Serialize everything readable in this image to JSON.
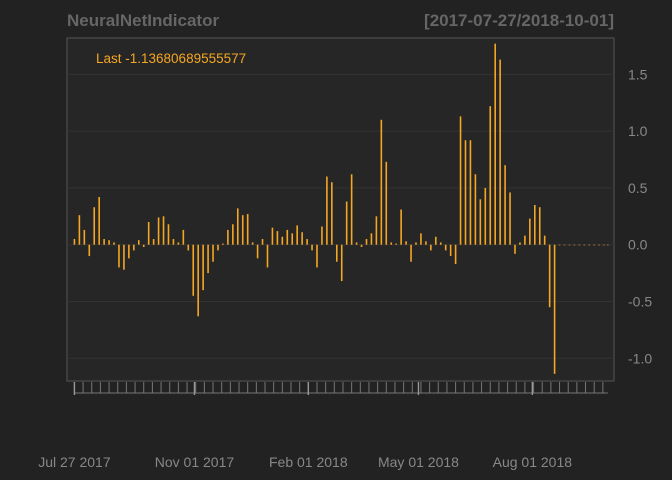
{
  "chart_data": {
    "type": "bar",
    "title": "NeuralNetIndicator",
    "date_range_label": "[2017-07-27/2018-10-01]",
    "last_label": "Last -1.13680689555577",
    "series_color": "#f5a623",
    "background_color": "#222222",
    "grid": true,
    "ylim": [
      -1.2,
      1.82
    ],
    "xlim": [
      "2017-07-21",
      "2018-10-06"
    ],
    "yticks": [
      {
        "value": 1.5,
        "label": "1.5"
      },
      {
        "value": 1.0,
        "label": "1.0"
      },
      {
        "value": 0.5,
        "label": "0.5"
      },
      {
        "value": 0.0,
        "label": "0.0"
      },
      {
        "value": -0.5,
        "label": "-0.5"
      },
      {
        "value": -1.0,
        "label": "-1.0"
      }
    ],
    "xticks": [
      {
        "date": "2017-07-27",
        "label": "Jul 27 2017"
      },
      {
        "date": "2017-11-01",
        "label": "Nov 01 2017"
      },
      {
        "date": "2018-02-01",
        "label": "Feb 01 2018"
      },
      {
        "date": "2018-05-01",
        "label": "May 01 2018"
      },
      {
        "date": "2018-08-01",
        "label": "Aug 01 2018"
      }
    ],
    "dates": [
      "2017-07-27",
      "2017-07-31",
      "2017-08-04",
      "2017-08-08",
      "2017-08-12",
      "2017-08-16",
      "2017-08-20",
      "2017-08-24",
      "2017-08-28",
      "2017-09-01",
      "2017-09-05",
      "2017-09-09",
      "2017-09-13",
      "2017-09-17",
      "2017-09-21",
      "2017-09-25",
      "2017-09-29",
      "2017-10-03",
      "2017-10-07",
      "2017-10-11",
      "2017-10-15",
      "2017-10-19",
      "2017-10-23",
      "2017-10-27",
      "2017-10-31",
      "2017-11-04",
      "2017-11-08",
      "2017-11-12",
      "2017-11-16",
      "2017-11-20",
      "2017-11-24",
      "2017-11-28",
      "2017-12-02",
      "2017-12-06",
      "2017-12-10",
      "2017-12-14",
      "2017-12-18",
      "2017-12-22",
      "2017-12-26",
      "2017-12-30",
      "2018-01-03",
      "2018-01-07",
      "2018-01-11",
      "2018-01-15",
      "2018-01-19",
      "2018-01-23",
      "2018-01-27",
      "2018-01-31",
      "2018-02-04",
      "2018-02-08",
      "2018-02-12",
      "2018-02-16",
      "2018-02-20",
      "2018-02-24",
      "2018-02-28",
      "2018-03-04",
      "2018-03-08",
      "2018-03-12",
      "2018-03-16",
      "2018-03-20",
      "2018-03-24",
      "2018-03-28",
      "2018-04-01",
      "2018-04-05",
      "2018-04-09",
      "2018-04-13",
      "2018-04-17",
      "2018-04-21",
      "2018-04-25",
      "2018-04-29",
      "2018-05-03",
      "2018-05-07",
      "2018-05-11",
      "2018-05-15",
      "2018-05-19",
      "2018-05-23",
      "2018-05-27",
      "2018-05-31",
      "2018-06-04",
      "2018-06-08",
      "2018-06-12",
      "2018-06-16",
      "2018-06-20",
      "2018-06-24",
      "2018-06-28",
      "2018-07-02",
      "2018-07-06",
      "2018-07-10",
      "2018-07-14",
      "2018-07-18",
      "2018-07-22",
      "2018-07-26",
      "2018-07-30",
      "2018-08-03",
      "2018-08-07",
      "2018-08-11",
      "2018-08-15",
      "2018-08-19",
      "2018-08-23",
      "2018-08-27",
      "2018-08-31",
      "2018-09-04",
      "2018-09-08",
      "2018-09-12",
      "2018-09-16",
      "2018-09-20",
      "2018-09-24",
      "2018-09-28",
      "2018-10-01"
    ],
    "values": [
      0.05,
      0.26,
      0.13,
      -0.1,
      0.33,
      0.42,
      0.05,
      0.04,
      0.02,
      -0.2,
      -0.22,
      -0.12,
      -0.05,
      0.04,
      -0.02,
      0.2,
      0.05,
      0.24,
      0.25,
      0.18,
      0.05,
      0.02,
      0.13,
      -0.05,
      -0.45,
      -0.63,
      -0.4,
      -0.25,
      -0.15,
      -0.05,
      0.01,
      0.13,
      0.18,
      0.32,
      0.26,
      0.27,
      0.02,
      -0.12,
      0.05,
      -0.2,
      0.15,
      0.12,
      0.07,
      0.13,
      0.1,
      0.17,
      0.11,
      0.05,
      -0.05,
      -0.2,
      0.16,
      0.6,
      0.55,
      -0.15,
      -0.32,
      0.38,
      0.62,
      0.02,
      -0.02,
      0.05,
      0.1,
      0.25,
      1.1,
      0.73,
      0.02,
      0.01,
      0.31,
      0.03,
      -0.15,
      0.02,
      0.1,
      0.03,
      -0.05,
      0.07,
      0.02,
      -0.05,
      -0.1,
      -0.17,
      1.13,
      0.92,
      0.92,
      0.62,
      0.4,
      0.5,
      1.22,
      1.77,
      1.63,
      0.7,
      0.46,
      -0.08,
      0.02,
      0.08,
      0.23,
      0.35,
      0.33,
      0.08,
      -0.55,
      -1.137,
      0.0,
      0.0,
      0.0,
      0.0,
      0.0,
      0.0,
      0.0,
      0.0,
      0.0,
      0.0,
      0.0
    ]
  }
}
